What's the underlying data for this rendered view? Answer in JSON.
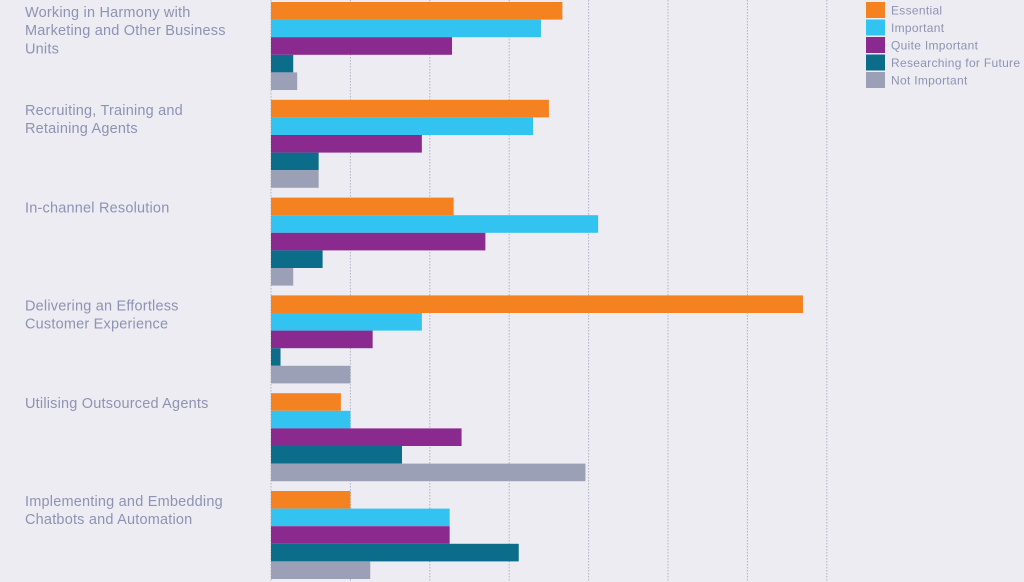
{
  "chart_data": {
    "type": "bar",
    "orientation": "horizontal",
    "categories": [
      [
        "Working in Harmony with",
        "Marketing and Other Business",
        "Units"
      ],
      [
        "Recruiting, Training and",
        "Retaining Agents"
      ],
      [
        "In-channel Resolution"
      ],
      [
        "Delivering an Effortless",
        "Customer Experience"
      ],
      [
        "Utilising Outsourced Agents"
      ],
      [
        "Implementing and Embedding",
        "Chatbots and Automation"
      ]
    ],
    "series": [
      {
        "name": "Essential",
        "color": "#f58220",
        "values": [
          36.7,
          35.0,
          23.0,
          67.0,
          8.8,
          10.0
        ]
      },
      {
        "name": "Important",
        "color": "#33c3f0",
        "values": [
          34.0,
          33.0,
          41.2,
          19.0,
          10.0,
          22.5
        ]
      },
      {
        "name": "Quite Important",
        "color": "#8a2a8f",
        "values": [
          22.8,
          19.0,
          27.0,
          12.8,
          24.0,
          22.5
        ]
      },
      {
        "name": "Researching for Future",
        "color": "#0c6d8b",
        "values": [
          2.8,
          6.0,
          6.5,
          1.2,
          16.5,
          31.2
        ]
      },
      {
        "name": "Not Important",
        "color": "#9ba0b6",
        "values": [
          3.3,
          6.0,
          2.8,
          10.0,
          39.6,
          12.5
        ]
      }
    ],
    "xlim": [
      0,
      70
    ],
    "x_grid_step": 10,
    "grid": true,
    "legend_position": "top-right",
    "title": "",
    "xlabel": "",
    "ylabel": ""
  }
}
